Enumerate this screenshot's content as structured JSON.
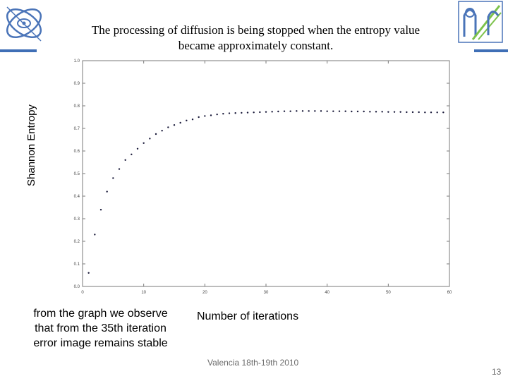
{
  "slide": {
    "title_lines": [
      "The processing of diffusion is being stopped when the entropy value",
      "became approximately constant."
    ],
    "note_lines": [
      "from the graph we observe",
      "that from the 35th iteration",
      "error image remains stable"
    ],
    "footer": "Valencia 18th-19th 2010",
    "page_number": "13"
  },
  "colors": {
    "accent_bar": "#3f6fb6",
    "marker": "#1a1a3a",
    "axis": "#7a7a7a"
  },
  "chart_data": {
    "type": "scatter",
    "title": "",
    "xlabel": "Number of iterations",
    "ylabel": "Shannon Entropy",
    "xlim": [
      0,
      60
    ],
    "ylim": [
      0.0,
      1.0
    ],
    "xticks": [
      "0",
      "10",
      "20",
      "30",
      "40",
      "50",
      "60"
    ],
    "yticks": [
      "0.0",
      "0.1",
      "0.2",
      "0.3",
      "0.4",
      "0.5",
      "0.6",
      "0.7",
      "0.8",
      "0.9",
      "1.0"
    ],
    "grid": false,
    "series": [
      {
        "name": "entropy",
        "x": [
          1,
          2,
          3,
          4,
          5,
          6,
          7,
          8,
          9,
          10,
          11,
          12,
          13,
          14,
          15,
          16,
          17,
          18,
          19,
          20,
          21,
          22,
          23,
          24,
          25,
          26,
          27,
          28,
          29,
          30,
          31,
          32,
          33,
          34,
          35,
          36,
          37,
          38,
          39,
          40,
          41,
          42,
          43,
          44,
          45,
          46,
          47,
          48,
          49,
          50,
          51,
          52,
          53,
          54,
          55,
          56,
          57,
          58,
          59
        ],
        "y": [
          0.06,
          0.23,
          0.34,
          0.42,
          0.48,
          0.52,
          0.56,
          0.585,
          0.61,
          0.635,
          0.655,
          0.675,
          0.69,
          0.705,
          0.715,
          0.725,
          0.735,
          0.74,
          0.75,
          0.755,
          0.758,
          0.762,
          0.765,
          0.767,
          0.768,
          0.769,
          0.77,
          0.771,
          0.772,
          0.773,
          0.774,
          0.775,
          0.776,
          0.776,
          0.777,
          0.777,
          0.777,
          0.777,
          0.777,
          0.776,
          0.776,
          0.776,
          0.776,
          0.775,
          0.775,
          0.775,
          0.774,
          0.774,
          0.774,
          0.773,
          0.773,
          0.773,
          0.772,
          0.772,
          0.772,
          0.771,
          0.771,
          0.771,
          0.771
        ]
      }
    ]
  }
}
